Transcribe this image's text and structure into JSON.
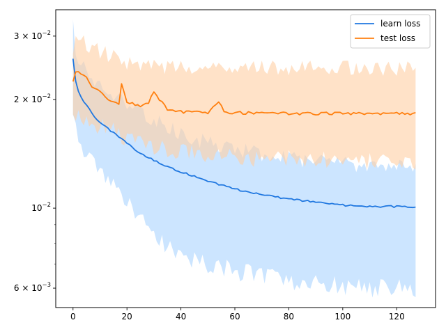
{
  "chart_data": {
    "type": "line",
    "title": "",
    "xlabel": "",
    "ylabel": "",
    "x_scale": "linear",
    "y_scale": "log",
    "xlim": [
      -6.4,
      134.4
    ],
    "ylim": [
      0.0053,
      0.0355
    ],
    "x_ticks": [
      0,
      20,
      40,
      60,
      80,
      100,
      120
    ],
    "x_tick_labels": [
      "0",
      "20",
      "40",
      "60",
      "80",
      "100",
      "120"
    ],
    "y_ticks": [
      0.03,
      0.02,
      0.01,
      0.006
    ],
    "y_tick_labels": [
      {
        "base": "3 × 10",
        "exp": "−2"
      },
      {
        "base": "2 × 10",
        "exp": "−2"
      },
      {
        "base": "10",
        "exp": "−2"
      },
      {
        "base": "6 × 10",
        "exp": "−3"
      }
    ],
    "grid": false,
    "legend_position": "top-right",
    "x_count": 128,
    "series": [
      {
        "name": "learn loss",
        "color": "#1f77e0",
        "band_color": "#aad4ff",
        "anchors_x": [
          0,
          1,
          2,
          3,
          5,
          8,
          10,
          15,
          20,
          25,
          30,
          35,
          40,
          50,
          60,
          70,
          80,
          90,
          100,
          110,
          120,
          127
        ],
        "anchors_mean": [
          0.026,
          0.0225,
          0.021,
          0.0202,
          0.0193,
          0.0178,
          0.0172,
          0.0162,
          0.0151,
          0.0142,
          0.0136,
          0.013,
          0.0126,
          0.0119,
          0.0113,
          0.0109,
          0.0106,
          0.0104,
          0.0102,
          0.0101,
          0.0101,
          0.0101
        ],
        "anchors_lower": [
          0.0175,
          0.0168,
          0.0158,
          0.015,
          0.0142,
          0.0133,
          0.0127,
          0.0116,
          0.0103,
          0.0092,
          0.0085,
          0.0078,
          0.0074,
          0.007,
          0.0067,
          0.0065,
          0.0063,
          0.0062,
          0.0061,
          0.006,
          0.006,
          0.006
        ],
        "anchors_upper": [
          0.0335,
          0.027,
          0.026,
          0.0252,
          0.024,
          0.0225,
          0.022,
          0.0208,
          0.0195,
          0.0185,
          0.0175,
          0.0168,
          0.016,
          0.0152,
          0.0146,
          0.0141,
          0.0137,
          0.0135,
          0.0133,
          0.0132,
          0.0131,
          0.013
        ]
      },
      {
        "name": "test loss",
        "color": "#ff7f0e",
        "band_color": "#ffcfa3",
        "anchors_x": [
          0,
          1,
          3,
          5,
          7,
          10,
          12,
          15,
          17,
          18,
          20,
          25,
          28,
          30,
          35,
          40,
          50,
          54,
          56,
          60,
          70,
          80,
          90,
          100,
          110,
          120,
          127
        ],
        "anchors_mean": [
          0.0225,
          0.0238,
          0.0237,
          0.0232,
          0.0215,
          0.021,
          0.0203,
          0.0198,
          0.0195,
          0.022,
          0.0198,
          0.0191,
          0.0196,
          0.021,
          0.0187,
          0.0185,
          0.0184,
          0.0198,
          0.0184,
          0.0184,
          0.0183,
          0.0183,
          0.0183,
          0.0183,
          0.0183,
          0.0183,
          0.0183
        ],
        "anchors_lower": [
          0.0172,
          0.0185,
          0.0178,
          0.0174,
          0.0172,
          0.017,
          0.0168,
          0.0164,
          0.016,
          0.0158,
          0.0156,
          0.0152,
          0.015,
          0.0148,
          0.0146,
          0.0144,
          0.0142,
          0.0141,
          0.014,
          0.0139,
          0.0138,
          0.0137,
          0.0136,
          0.0136,
          0.0136,
          0.0136,
          0.0136
        ],
        "anchors_upper": [
          0.0265,
          0.029,
          0.0292,
          0.0285,
          0.0278,
          0.0272,
          0.0268,
          0.0262,
          0.0258,
          0.0255,
          0.0252,
          0.0248,
          0.0247,
          0.0246,
          0.0246,
          0.0245,
          0.0245,
          0.0245,
          0.0245,
          0.0245,
          0.0245,
          0.0245,
          0.0245,
          0.0245,
          0.0245,
          0.0245,
          0.0245
        ]
      }
    ]
  }
}
